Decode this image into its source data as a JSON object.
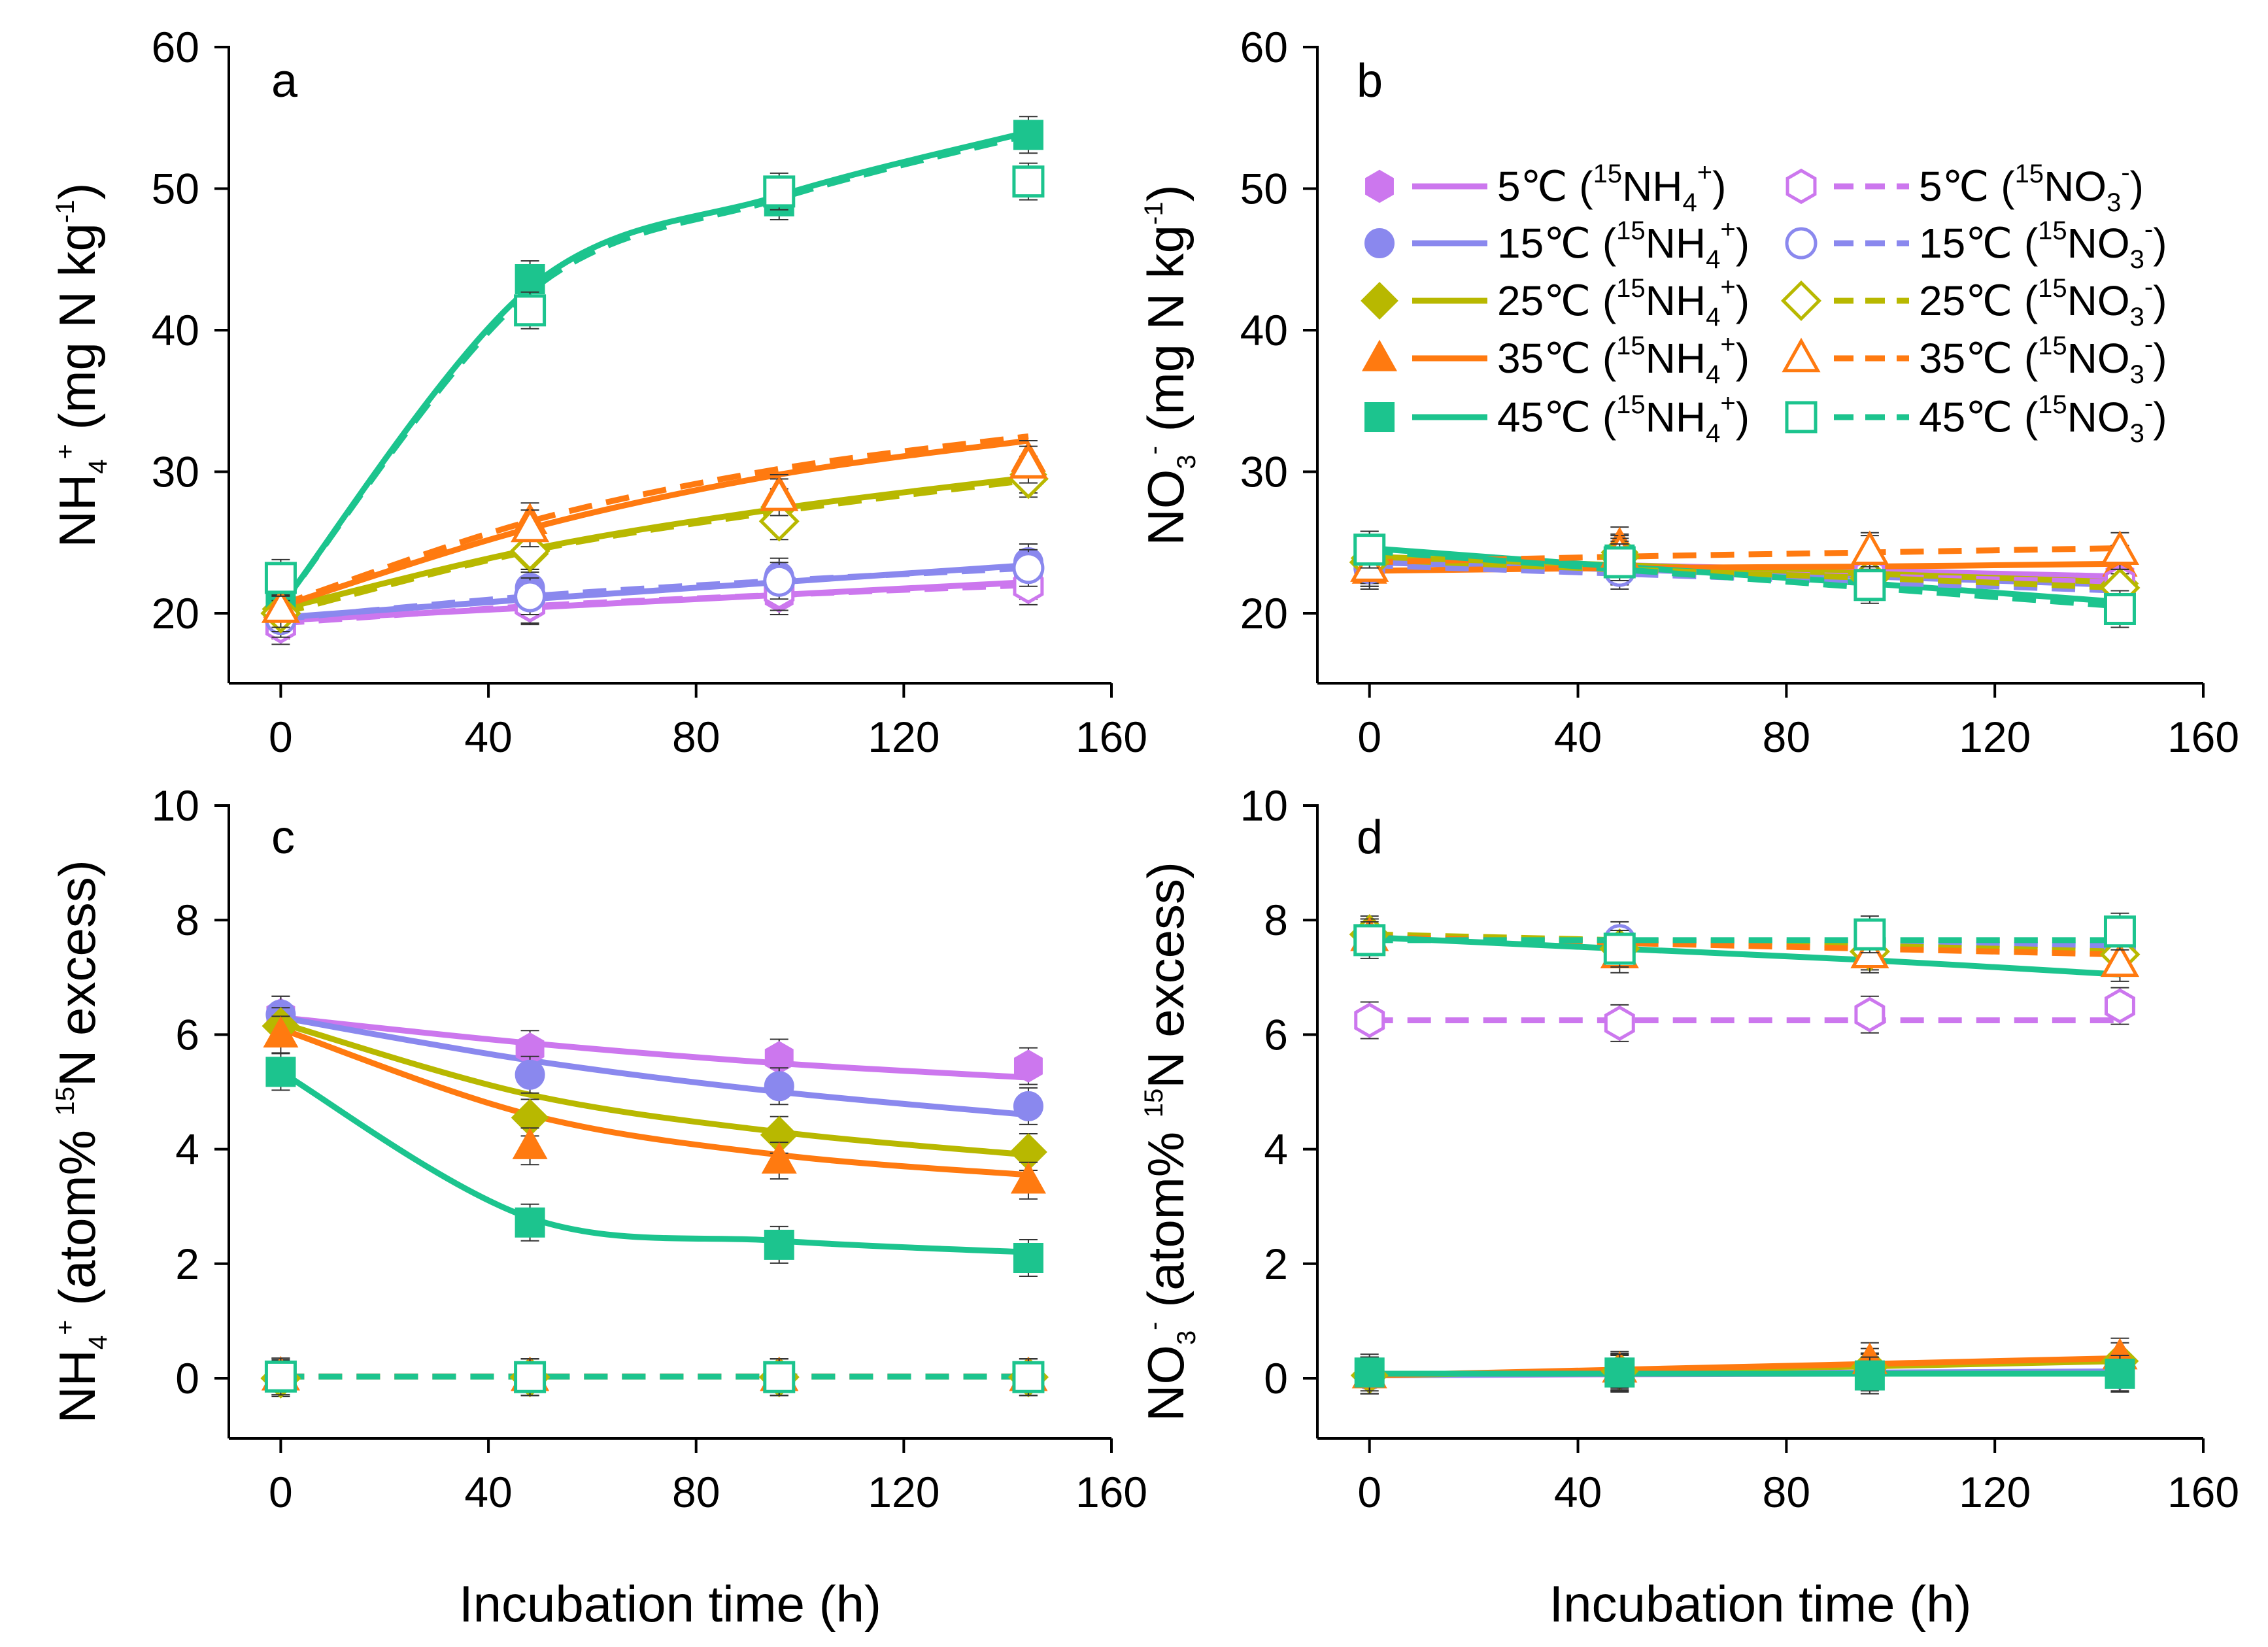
{
  "colors": {
    "5": "#cc77ee",
    "15": "#8a88ee",
    "25": "#b8b800",
    "35": "#ff7a10",
    "45": "#1cc48e"
  },
  "shared": {
    "xlabel": "Incubation time (h)"
  },
  "chart_data": [
    {
      "type": "line",
      "panel": "a",
      "ylabel": {
        "main": "NH",
        "sub": "4",
        "sup": "+",
        "rest": " (mg N kg",
        "sup2": "-1",
        "end": ")"
      },
      "xlim": [
        -10,
        160
      ],
      "ylim": [
        17,
        62
      ],
      "xticks": [
        "0",
        "40",
        "80",
        "120",
        "160"
      ],
      "yticks": [
        "20",
        "30",
        "40",
        "50",
        "60"
      ],
      "x": [
        0,
        48,
        96,
        144
      ],
      "series": [
        {
          "temp": "5",
          "label": "5℃ (15NH4+)",
          "style": "solid",
          "marker": "hexagon-filled",
          "values": [
            19.5,
            20.5,
            21.2,
            22.3
          ],
          "fit": [
            19.5,
            20.4,
            21.3,
            22.2
          ]
        },
        {
          "temp": "15",
          "label": "15℃ (15NH4+)",
          "style": "solid",
          "marker": "circle-filled",
          "values": [
            19.8,
            21.8,
            22.6,
            23.6
          ],
          "fit": [
            19.7,
            21.0,
            22.2,
            23.4
          ]
        },
        {
          "temp": "25",
          "label": "25℃ (15NH4+)",
          "style": "solid",
          "marker": "diamond-filled",
          "values": [
            20.3,
            24.2,
            27.5,
            29.8
          ],
          "fit": [
            20.3,
            24.5,
            27.4,
            29.6
          ]
        },
        {
          "temp": "35",
          "label": "35℃ (15NH4+)",
          "style": "solid",
          "marker": "triangle-filled",
          "values": [
            20.6,
            26.5,
            28.5,
            30.9
          ],
          "fit": [
            20.5,
            26.0,
            29.8,
            32.2
          ]
        },
        {
          "temp": "45",
          "label": "45℃ (15NH4+)",
          "style": "solid",
          "marker": "square-filled",
          "values": [
            20.8,
            43.6,
            49.1,
            53.8
          ],
          "fit": [
            20.5,
            43.0,
            49.5,
            54.0
          ]
        },
        {
          "temp": "5",
          "label": "5℃ (15NO3-)",
          "style": "dashed",
          "marker": "hexagon-open",
          "values": [
            19.1,
            20.6,
            21.5,
            21.9
          ],
          "fit": [
            19.3,
            20.5,
            21.3,
            22.0
          ]
        },
        {
          "temp": "15",
          "label": "15℃ (15NO3-)",
          "style": "dashed",
          "marker": "circle-open",
          "values": [
            19.6,
            21.2,
            22.3,
            23.2
          ],
          "fit": [
            19.6,
            21.2,
            22.3,
            23.2
          ]
        },
        {
          "temp": "25",
          "label": "25℃ (15NO3-)",
          "style": "dashed",
          "marker": "diamond-open",
          "values": [
            20.0,
            24.4,
            26.5,
            29.5
          ],
          "fit": [
            20.0,
            24.4,
            27.2,
            29.4
          ]
        },
        {
          "temp": "35",
          "label": "35℃ (15NO3-)",
          "style": "dashed",
          "marker": "triangle-open",
          "values": [
            20.3,
            26.0,
            28.2,
            30.5
          ],
          "fit": [
            20.6,
            26.5,
            30.2,
            32.5
          ]
        },
        {
          "temp": "45",
          "label": "45℃ (15NO3-)",
          "style": "dashed",
          "marker": "square-open",
          "values": [
            22.5,
            41.4,
            49.8,
            50.5
          ],
          "fit": [
            20.5,
            42.7,
            49.3,
            53.8
          ]
        }
      ]
    },
    {
      "type": "line",
      "panel": "b",
      "ylabel": {
        "main": "NO",
        "sub": "3",
        "sup": "-",
        "rest": " (mg N kg",
        "sup2": "-1",
        "end": ")"
      },
      "xlim": [
        -10,
        160
      ],
      "ylim": [
        15,
        60
      ],
      "xticks": [
        "0",
        "40",
        "80",
        "120",
        "160"
      ],
      "yticks": [
        "20",
        "30",
        "40",
        "50",
        "60"
      ],
      "x": [
        0,
        48,
        96,
        144
      ],
      "series": [
        {
          "temp": "5",
          "label": "5℃ (15NH4+)",
          "style": "solid",
          "marker": "hexagon-filled",
          "values": [
            23.8,
            23.6,
            23.1,
            22.6
          ],
          "fit": [
            23.8,
            23.4,
            23.0,
            22.6
          ]
        },
        {
          "temp": "15",
          "label": "15℃ (15NH4+)",
          "style": "solid",
          "marker": "circle-filled",
          "values": [
            23.6,
            23.4,
            22.6,
            22.0
          ],
          "fit": [
            23.6,
            23.1,
            22.6,
            22.0
          ]
        },
        {
          "temp": "25",
          "label": "25℃ (15NH4+)",
          "style": "solid",
          "marker": "diamond-filled",
          "values": [
            23.9,
            24.3,
            22.8,
            22.1
          ],
          "fit": [
            24.0,
            23.4,
            22.8,
            22.2
          ]
        },
        {
          "temp": "35",
          "label": "35℃ (15NH4+)",
          "style": "solid",
          "marker": "triangle-filled",
          "values": [
            23.0,
            24.8,
            24.2,
            23.5
          ],
          "fit": [
            23.0,
            23.2,
            23.3,
            23.5
          ]
        },
        {
          "temp": "45",
          "label": "45℃ (15NH4+)",
          "style": "solid",
          "marker": "square-filled",
          "values": [
            24.5,
            23.8,
            22.3,
            21.0
          ],
          "fit": [
            24.6,
            23.3,
            22.1,
            20.8
          ]
        },
        {
          "temp": "5",
          "label": "5℃ (15NO3-)",
          "style": "dashed",
          "marker": "hexagon-open",
          "values": [
            23.4,
            23.3,
            22.8,
            22.2
          ],
          "fit": [
            23.4,
            23.0,
            22.6,
            22.2
          ]
        },
        {
          "temp": "15",
          "label": "15℃ (15NO3-)",
          "style": "dashed",
          "marker": "circle-open",
          "values": [
            23.2,
            23.0,
            22.2,
            21.5
          ],
          "fit": [
            23.4,
            22.8,
            22.2,
            21.6
          ]
        },
        {
          "temp": "25",
          "label": "25℃ (15NO3-)",
          "style": "dashed",
          "marker": "diamond-open",
          "values": [
            23.6,
            24.0,
            22.5,
            21.8
          ],
          "fit": [
            23.8,
            23.1,
            22.5,
            21.8
          ]
        },
        {
          "temp": "35",
          "label": "35℃ (15NO3-)",
          "style": "dashed",
          "marker": "triangle-open",
          "values": [
            23.2,
            24.2,
            24.4,
            24.4
          ],
          "fit": [
            23.6,
            24.0,
            24.3,
            24.6
          ]
        },
        {
          "temp": "45",
          "label": "45℃ (15NO3-)",
          "style": "dashed",
          "marker": "square-open",
          "values": [
            24.5,
            23.6,
            22.0,
            20.3
          ],
          "fit": [
            24.4,
            23.1,
            21.8,
            20.5
          ]
        }
      ],
      "legend": {
        "placement": "top",
        "items": [
          {
            "temp": "5",
            "style": "solid",
            "marker": "hexagon-filled",
            "t": "5℃ (",
            "iso": "15",
            "ion": "NH",
            "sub": "4",
            "sup": "+",
            "close": ")"
          },
          {
            "temp": "15",
            "style": "solid",
            "marker": "circle-filled",
            "t": "15℃ (",
            "iso": "15",
            "ion": "NH",
            "sub": "4",
            "sup": "+",
            "close": ")"
          },
          {
            "temp": "25",
            "style": "solid",
            "marker": "diamond-filled",
            "t": "25℃ (",
            "iso": "15",
            "ion": "NH",
            "sub": "4",
            "sup": "+",
            "close": ")"
          },
          {
            "temp": "35",
            "style": "solid",
            "marker": "triangle-filled",
            "t": "35℃ (",
            "iso": "15",
            "ion": "NH",
            "sub": "4",
            "sup": "+",
            "close": ")"
          },
          {
            "temp": "45",
            "style": "solid",
            "marker": "square-filled",
            "t": "45℃ (",
            "iso": "15",
            "ion": "NH",
            "sub": "4",
            "sup": "+",
            "close": ")"
          },
          {
            "temp": "5",
            "style": "dashed",
            "marker": "hexagon-open",
            "t": "5℃ (",
            "iso": "15",
            "ion": "NO",
            "sub": "3",
            "sup": "-",
            "close": ")"
          },
          {
            "temp": "15",
            "style": "dashed",
            "marker": "circle-open",
            "t": "15℃ (",
            "iso": "15",
            "ion": "NO",
            "sub": "3",
            "sup": "-",
            "close": ")"
          },
          {
            "temp": "25",
            "style": "dashed",
            "marker": "diamond-open",
            "t": "25℃ (",
            "iso": "15",
            "ion": "NO",
            "sub": "3",
            "sup": "-",
            "close": ")"
          },
          {
            "temp": "35",
            "style": "dashed",
            "marker": "triangle-open",
            "t": "35℃ (",
            "iso": "15",
            "ion": "NO",
            "sub": "3",
            "sup": "-",
            "close": ")"
          },
          {
            "temp": "45",
            "style": "dashed",
            "marker": "square-open",
            "t": "45℃ (",
            "iso": "15",
            "ion": "NO",
            "sub": "3",
            "sup": "-",
            "close": ")"
          }
        ]
      }
    },
    {
      "type": "line",
      "panel": "c",
      "ylabel": {
        "main": "NH",
        "sub": "4",
        "sup": "+",
        "rest": " (atom% ",
        "sup2": "15",
        "end": "N excess)"
      },
      "xlim": [
        -10,
        160
      ],
      "ylim": [
        -1,
        10
      ],
      "xticks": [
        "0",
        "40",
        "80",
        "120",
        "160"
      ],
      "yticks": [
        "0",
        "2",
        "4",
        "6",
        "8",
        "10"
      ],
      "x": [
        0,
        48,
        96,
        144
      ],
      "series": [
        {
          "temp": "5",
          "label": "5℃ (15NH4+)",
          "style": "solid",
          "marker": "hexagon-filled",
          "values": [
            6.35,
            5.75,
            5.6,
            5.45
          ],
          "fit": [
            6.3,
            5.85,
            5.5,
            5.25
          ]
        },
        {
          "temp": "15",
          "label": "15℃ (15NH4+)",
          "style": "solid",
          "marker": "circle-filled",
          "values": [
            6.35,
            5.3,
            5.1,
            4.75
          ],
          "fit": [
            6.3,
            5.55,
            5.0,
            4.6
          ]
        },
        {
          "temp": "25",
          "label": "25℃ (15NH4+)",
          "style": "solid",
          "marker": "diamond-filled",
          "values": [
            6.15,
            4.55,
            4.25,
            3.95
          ],
          "fit": [
            6.2,
            4.95,
            4.3,
            3.9
          ]
        },
        {
          "temp": "35",
          "label": "35℃ (15NH4+)",
          "style": "solid",
          "marker": "triangle-filled",
          "values": [
            6.0,
            4.05,
            3.8,
            3.45
          ],
          "fit": [
            6.1,
            4.6,
            3.9,
            3.55
          ]
        },
        {
          "temp": "45",
          "label": "45℃ (15NH4+)",
          "style": "solid",
          "marker": "square-filled",
          "values": [
            5.35,
            2.72,
            2.33,
            2.1
          ],
          "fit": [
            5.35,
            2.8,
            2.4,
            2.2
          ]
        },
        {
          "temp": "5",
          "label": "5℃ (15NO3-)",
          "style": "dashed",
          "marker": "hexagon-open",
          "values": [
            0.03,
            0.02,
            0.02,
            0.02
          ],
          "fit": [
            0.03,
            0.03,
            0.03,
            0.03
          ]
        },
        {
          "temp": "15",
          "label": "15℃ (15NO3-)",
          "style": "dashed",
          "marker": "circle-open",
          "values": [
            0.03,
            0.02,
            0.02,
            0.02
          ],
          "fit": [
            0.03,
            0.03,
            0.03,
            0.03
          ]
        },
        {
          "temp": "25",
          "label": "25℃ (15NO3-)",
          "style": "dashed",
          "marker": "diamond-open",
          "values": [
            0.0,
            0.02,
            0.02,
            0.02
          ],
          "fit": [
            0.03,
            0.03,
            0.03,
            0.03
          ]
        },
        {
          "temp": "35",
          "label": "35℃ (15NO3-)",
          "style": "dashed",
          "marker": "triangle-open",
          "values": [
            0.03,
            0.02,
            0.02,
            0.02
          ],
          "fit": [
            0.03,
            0.03,
            0.03,
            0.03
          ]
        },
        {
          "temp": "45",
          "label": "45℃ (15NO3-)",
          "style": "dashed",
          "marker": "square-open",
          "values": [
            0.03,
            0.02,
            0.02,
            0.02
          ],
          "fit": [
            0.03,
            0.03,
            0.03,
            0.03
          ]
        }
      ]
    },
    {
      "type": "line",
      "panel": "d",
      "ylabel": {
        "main": "NO",
        "sub": "3",
        "sup": "-",
        "rest": " (atom% ",
        "sup2": "15",
        "end": "N excess)"
      },
      "xlim": [
        -10,
        160
      ],
      "ylim": [
        -1,
        10
      ],
      "xticks": [
        "0",
        "40",
        "80",
        "120",
        "160"
      ],
      "yticks": [
        "0",
        "2",
        "4",
        "6",
        "8",
        "10"
      ],
      "x": [
        0,
        48,
        96,
        144
      ],
      "series": [
        {
          "temp": "5",
          "label": "5℃ (15NH4+)",
          "style": "solid",
          "marker": "hexagon-filled",
          "values": [
            0.05,
            0.08,
            0.1,
            0.08
          ],
          "fit": [
            0.05,
            0.07,
            0.08,
            0.1
          ]
        },
        {
          "temp": "15",
          "label": "15℃ (15NH4+)",
          "style": "solid",
          "marker": "circle-filled",
          "values": [
            0.05,
            0.1,
            0.12,
            0.1
          ],
          "fit": [
            0.05,
            0.08,
            0.1,
            0.12
          ]
        },
        {
          "temp": "25",
          "label": "25℃ (15NH4+)",
          "style": "solid",
          "marker": "diamond-filled",
          "values": [
            0.05,
            0.12,
            0.2,
            0.3
          ],
          "fit": [
            0.05,
            0.13,
            0.21,
            0.3
          ]
        },
        {
          "temp": "35",
          "label": "35℃ (15NH4+)",
          "style": "solid",
          "marker": "triangle-filled",
          "values": [
            0.05,
            0.15,
            0.3,
            0.38
          ],
          "fit": [
            0.05,
            0.15,
            0.25,
            0.35
          ]
        },
        {
          "temp": "45",
          "label": "45℃ (15NH4+)",
          "style": "solid",
          "marker": "square-filled",
          "values": [
            0.1,
            0.1,
            0.05,
            0.08
          ],
          "fit": [
            0.08,
            0.08,
            0.08,
            0.08
          ]
        },
        {
          "temp": "5",
          "label": "5℃ (15NO3-)",
          "style": "dashed",
          "marker": "hexagon-open",
          "values": [
            6.25,
            6.2,
            6.35,
            6.5
          ],
          "fit": [
            6.25,
            6.25,
            6.25,
            6.25
          ]
        },
        {
          "temp": "15",
          "label": "15℃ (15NO3-)",
          "style": "dashed",
          "marker": "circle-open",
          "values": [
            7.7,
            7.65,
            7.55,
            7.5
          ],
          "fit": [
            7.7,
            7.65,
            7.6,
            7.55
          ]
        },
        {
          "temp": "25",
          "label": "25℃ (15NO3-)",
          "style": "dashed",
          "marker": "diamond-open",
          "values": [
            7.75,
            7.5,
            7.45,
            7.4
          ],
          "fit": [
            7.75,
            7.65,
            7.55,
            7.45
          ]
        },
        {
          "temp": "35",
          "label": "35℃ (15NO3-)",
          "style": "dashed",
          "marker": "triangle-open",
          "values": [
            7.7,
            7.4,
            7.4,
            7.25
          ],
          "fit": [
            7.7,
            7.6,
            7.5,
            7.4
          ]
        },
        {
          "temp": "45",
          "label": "45℃ (15NO3-)",
          "style": "dashed",
          "marker": "square-open",
          "values": [
            7.65,
            7.5,
            7.75,
            7.8
          ],
          "fit": [
            7.65,
            7.65,
            7.65,
            7.65
          ]
        }
      ],
      "extra_lines": [
        {
          "temp": "45",
          "label": "45℃ (15NH4+) solid decline",
          "style": "solid",
          "fit": [
            7.7,
            7.5,
            7.3,
            7.05
          ]
        }
      ]
    }
  ]
}
